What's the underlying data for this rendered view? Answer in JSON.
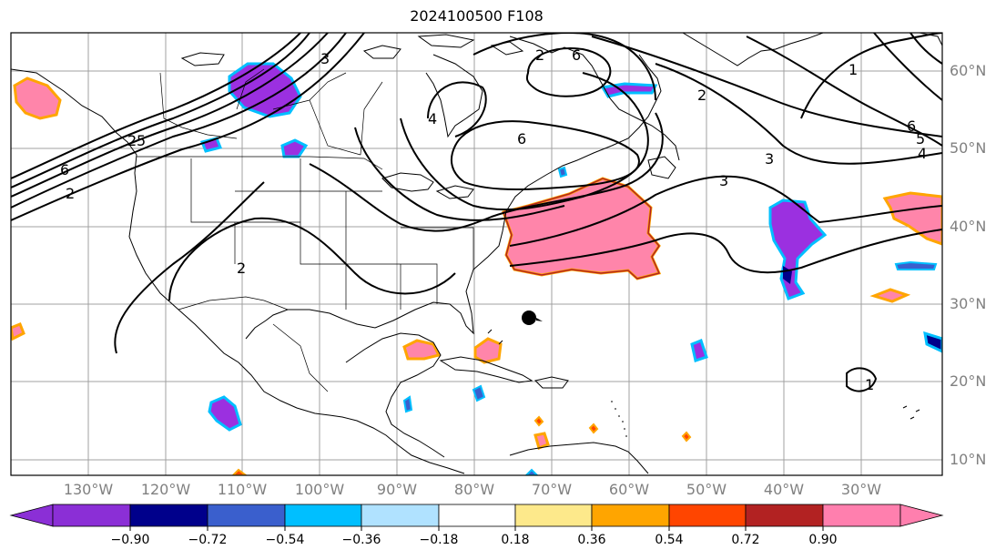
{
  "title": "2024100500 F108",
  "lon_labels": [
    "130°W",
    "120°W",
    "110°W",
    "100°W",
    "90°W",
    "80°W",
    "70°W",
    "60°W",
    "50°W",
    "40°W",
    "30°W"
  ],
  "lat_labels": [
    "60°N",
    "50°N",
    "40°N",
    "30°N",
    "20°N",
    "10°N"
  ],
  "contour_labels": [
    "6",
    "5",
    "4",
    "3",
    "2",
    "1",
    "6",
    "3",
    "3",
    "2",
    "1",
    "6",
    "5",
    "4",
    "4",
    "2",
    "6",
    "2",
    "1",
    "2",
    "5"
  ],
  "colorbar": {
    "ticks": [
      "−0.90",
      "−0.72",
      "−0.54",
      "−0.36",
      "−0.18",
      "0.18",
      "0.36",
      "0.54",
      "0.72",
      "0.90"
    ],
    "colors": [
      "#8b2fd6",
      "#00008b",
      "#3a5fcd",
      "#00bfff",
      "#b0e2ff",
      "#ffffff",
      "#fde98b",
      "#ffa500",
      "#ff4500",
      "#b22222",
      "#ff7fae"
    ]
  },
  "colors": {
    "positive_fill": "#ff85aa",
    "positive_edge1": "#ffa500",
    "positive_edge2": "#b22222",
    "negative_fill": "#9b30e0",
    "negative_edge1": "#00bfff",
    "negative_edge2": "#00008b",
    "contour": "#000000",
    "coast": "#000000",
    "grid": "#a0a0a0"
  }
}
